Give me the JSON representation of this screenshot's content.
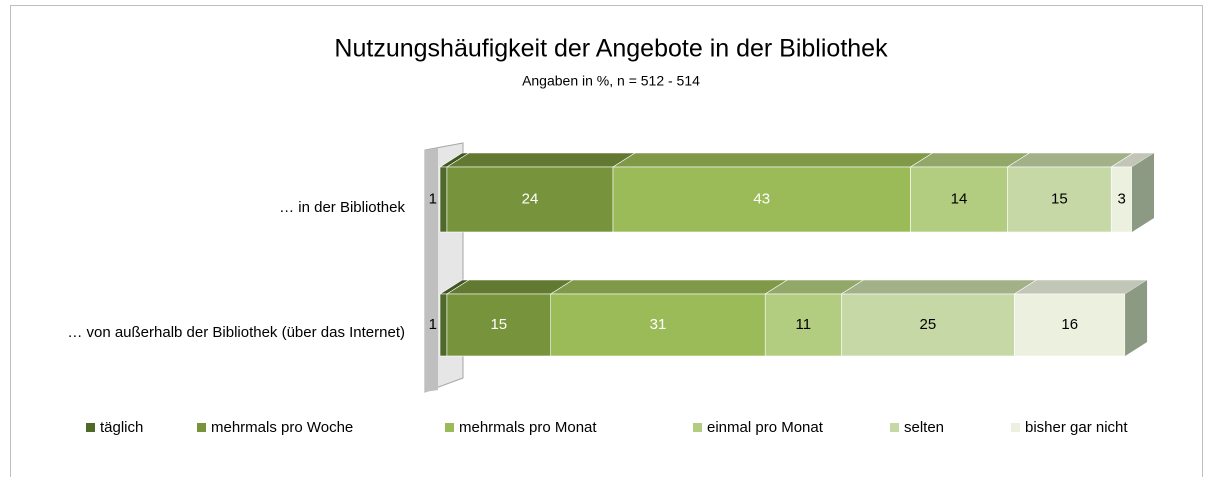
{
  "chart_data": {
    "type": "stacked-bar-3d",
    "title": "Nutzungshäufigkeit der Angebote in der Bibliothek",
    "subtitle": "Angaben in %, n = 512 - 514",
    "categories": [
      "… in der Bibliothek",
      "… von außerhalb der Bibliothek (über das Internet)"
    ],
    "xlim": [
      0,
      100
    ],
    "legend": "bottom",
    "series": [
      {
        "name": "täglich",
        "color": "#4f6a28",
        "values": [
          1,
          1
        ]
      },
      {
        "name": "mehrmals pro Woche",
        "color": "#77933c",
        "values": [
          24,
          15
        ]
      },
      {
        "name": "mehrmals pro Monat",
        "color": "#9bbb59",
        "values": [
          43,
          31
        ]
      },
      {
        "name": "einmal pro Monat",
        "color": "#b2cd80",
        "values": [
          14,
          11
        ]
      },
      {
        "name": "selten",
        "color": "#c6d8a6",
        "values": [
          15,
          25
        ]
      },
      {
        "name": "bisher gar nicht",
        "color": "#ebf1de",
        "values": [
          3,
          16
        ]
      }
    ]
  }
}
